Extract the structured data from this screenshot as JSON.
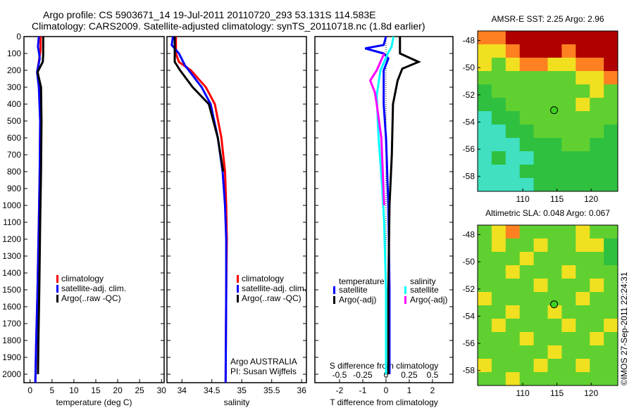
{
  "title_line1": "Argo profile: CS 5903671_14 19-Jul-2011 20110720_293 53.131S 114.583E",
  "title_line2": "Climatology: CARS2009. Satellite-adjusted climatology: synTS_20110718.nc (1.8d earlier)",
  "credit": "©IMOS 27-Sep-2011 22:24:31",
  "colors": {
    "clim": "#ff0000",
    "sat": "#0000ff",
    "argo": "#000000",
    "ssat": "#00ffff",
    "sargo": "#ff00ff"
  },
  "chart_data": [
    {
      "type": "line",
      "id": "temp",
      "xlabel": "temperature (deg C)",
      "xlim": [
        -1.4,
        30.6
      ],
      "ylim": [
        0,
        2050
      ],
      "yticks": [
        0,
        100,
        200,
        300,
        400,
        500,
        600,
        700,
        800,
        900,
        1000,
        1100,
        1200,
        1300,
        1400,
        1500,
        1600,
        1700,
        1800,
        1900,
        2000
      ],
      "xticks": [
        0,
        5,
        10,
        15,
        20,
        25,
        30
      ],
      "legend": [
        "climatology",
        "satellite-adj. clim.",
        "Argo(..raw -QC)"
      ],
      "series": [
        {
          "name": "climatology",
          "color": "clim",
          "points": [
            [
              2.4,
              0
            ],
            [
              2.4,
              80
            ],
            [
              2.1,
              130
            ],
            [
              1.7,
              200
            ],
            [
              2.1,
              300
            ],
            [
              2.3,
              500
            ],
            [
              2.2,
              800
            ],
            [
              2.0,
              1100
            ],
            [
              1.7,
              1500
            ],
            [
              1.4,
              1800
            ],
            [
              1.2,
              2050
            ]
          ]
        },
        {
          "name": "satellite-adj. clim.",
          "color": "sat",
          "points": [
            [
              2.0,
              0
            ],
            [
              1.8,
              60
            ],
            [
              2.0,
              90
            ],
            [
              2.2,
              130
            ],
            [
              1.6,
              210
            ],
            [
              2.0,
              300
            ],
            [
              2.3,
              500
            ],
            [
              2.2,
              800
            ],
            [
              2.0,
              1100
            ],
            [
              1.7,
              1500
            ],
            [
              1.4,
              1800
            ],
            [
              1.2,
              2050
            ]
          ]
        },
        {
          "name": "Argo(..raw -QC)",
          "color": "argo",
          "points": [
            [
              3.0,
              0
            ],
            [
              3.0,
              100
            ],
            [
              2.9,
              150
            ],
            [
              1.7,
              210
            ],
            [
              2.5,
              300
            ],
            [
              2.6,
              500
            ],
            [
              2.5,
              800
            ],
            [
              2.3,
              1100
            ],
            [
              2.1,
              1500
            ],
            [
              1.9,
              1800
            ],
            [
              1.8,
              2000
            ]
          ]
        }
      ]
    },
    {
      "type": "line",
      "id": "sal",
      "xlabel": "salinity",
      "xlim": [
        33.75,
        36.08
      ],
      "ylim": [
        0,
        2050
      ],
      "xticks": [
        34,
        34.5,
        35,
        35.5,
        36
      ],
      "legend": [
        "climatology",
        "satellite-adj. clim.",
        "Argo(..raw -QC)"
      ],
      "annotation": [
        "Argo AUSTRALIA",
        "PI: Susan Wijffels"
      ],
      "series": [
        {
          "name": "climatology",
          "color": "clim",
          "points": [
            [
              33.9,
              0
            ],
            [
              33.9,
              100
            ],
            [
              33.95,
              150
            ],
            [
              34.15,
              200
            ],
            [
              34.4,
              300
            ],
            [
              34.55,
              400
            ],
            [
              34.66,
              600
            ],
            [
              34.72,
              800
            ],
            [
              34.74,
              1000
            ],
            [
              34.75,
              1200
            ],
            [
              34.74,
              1500
            ],
            [
              34.73,
              2050
            ]
          ]
        },
        {
          "name": "satellite-adj. clim.",
          "color": "sat",
          "points": [
            [
              33.85,
              0
            ],
            [
              33.83,
              50
            ],
            [
              33.95,
              100
            ],
            [
              34.05,
              170
            ],
            [
              34.33,
              300
            ],
            [
              34.48,
              400
            ],
            [
              34.6,
              600
            ],
            [
              34.68,
              800
            ],
            [
              34.72,
              1000
            ],
            [
              34.74,
              1200
            ],
            [
              34.74,
              1500
            ],
            [
              34.73,
              2050
            ]
          ]
        },
        {
          "name": "Argo(..raw -QC)",
          "color": "argo",
          "points": [
            [
              33.88,
              0
            ],
            [
              33.88,
              150
            ],
            [
              33.97,
              200
            ],
            [
              34.18,
              300
            ],
            [
              34.45,
              400
            ],
            [
              34.6,
              600
            ],
            [
              34.69,
              800
            ]
          ]
        }
      ]
    },
    {
      "type": "line",
      "id": "diff",
      "xlabel": "T difference from climatology",
      "x2label": "S difference from climatology",
      "xlim": [
        -3.06,
        2.88
      ],
      "ylim": [
        0,
        2050
      ],
      "xticks": [
        -2,
        -1,
        0,
        1,
        2
      ],
      "x2ticks": [
        "-0.5",
        "-0.25",
        "0",
        "0.25",
        "0.5"
      ],
      "s_scale": 4,
      "legend_titles": [
        "temperature",
        "salinity"
      ],
      "legend": [
        "satellite",
        "Argo(-adj)",
        "satellite",
        "Argo(-adj)"
      ],
      "series": [
        {
          "name": "T satellite",
          "color": "sat",
          "points": [
            [
              0,
              0
            ],
            [
              -0.1,
              50
            ],
            [
              -0.9,
              70
            ],
            [
              -0.1,
              100
            ],
            [
              0.1,
              130
            ],
            [
              -0.1,
              200
            ],
            [
              -0.1,
              400
            ],
            [
              0,
              600
            ],
            [
              0.1,
              1000
            ],
            [
              0.15,
              1500
            ],
            [
              0.15,
              2000
            ]
          ]
        },
        {
          "name": "T Argo(-adj)",
          "color": "argo",
          "points": [
            [
              0.6,
              0
            ],
            [
              0.6,
              100
            ],
            [
              1.4,
              150
            ],
            [
              0.7,
              190
            ],
            [
              0.5,
              260
            ],
            [
              0.3,
              400
            ],
            [
              0.25,
              700
            ],
            [
              0.15,
              1000
            ],
            [
              0.1,
              1500
            ],
            [
              0.1,
              2000
            ]
          ]
        },
        {
          "name": "S satellite",
          "color": "ssat",
          "points": [
            [
              0.08,
              0
            ],
            [
              0.06,
              60
            ],
            [
              0.02,
              100
            ],
            [
              -0.06,
              200
            ],
            [
              -0.1,
              350
            ],
            [
              -0.08,
              600
            ],
            [
              -0.04,
              900
            ],
            [
              -0.02,
              1100
            ],
            [
              0,
              1500
            ],
            [
              0,
              2000
            ]
          ]
        },
        {
          "name": "S Argo(-adj)",
          "color": "sargo",
          "points": [
            [
              -0.02,
              100
            ],
            [
              -0.1,
              200
            ],
            [
              -0.17,
              260
            ],
            [
              -0.12,
              330
            ],
            [
              -0.1,
              400
            ],
            [
              -0.05,
              600
            ],
            [
              -0.02,
              1000
            ]
          ]
        }
      ]
    },
    {
      "type": "heatmap",
      "id": "sst",
      "title": "AMSR-E SST: 2.25 Argo: 2.96",
      "xticks": [
        110,
        115,
        120
      ],
      "yticks": [
        -48,
        -50,
        -52,
        -54,
        -56,
        -58
      ],
      "xlim": [
        103.4,
        123.9
      ],
      "ylim": [
        -59.1,
        -47.3
      ],
      "marker": [
        114.583,
        -53.131
      ],
      "vmin": 0,
      "vmax": 6,
      "grid": [
        [
          5,
          5,
          6,
          6,
          6,
          6,
          6,
          6,
          6,
          6
        ],
        [
          4,
          4,
          5,
          6,
          6,
          6,
          5,
          6,
          6,
          6
        ],
        [
          4,
          3,
          4,
          5,
          5,
          4,
          4,
          5,
          5,
          6
        ],
        [
          3,
          3,
          3,
          3,
          3,
          3,
          3,
          4,
          4,
          5
        ],
        [
          2,
          3,
          3,
          3,
          3,
          3,
          3,
          3,
          4,
          3
        ],
        [
          2,
          2,
          3,
          3,
          3,
          3,
          3,
          4,
          3,
          3
        ],
        [
          1,
          2,
          2,
          3,
          3,
          3,
          3,
          3,
          3,
          3
        ],
        [
          1,
          1,
          2,
          2,
          3,
          3,
          3,
          3,
          3,
          2
        ],
        [
          1,
          1,
          1,
          2,
          2,
          2,
          3,
          3,
          2,
          2
        ],
        [
          1,
          2,
          1,
          1,
          2,
          2,
          2,
          2,
          2,
          2
        ],
        [
          1,
          1,
          1,
          2,
          2,
          2,
          2,
          2,
          2,
          2
        ],
        [
          1,
          1,
          1,
          1,
          2,
          2,
          2,
          2,
          2,
          2
        ]
      ]
    },
    {
      "type": "heatmap",
      "id": "sla",
      "title": "Altimetric SLA: 0.048 Argo: 0.067",
      "xticks": [
        110,
        115,
        120
      ],
      "yticks": [
        -48,
        -50,
        -52,
        -54,
        -56,
        -58
      ],
      "xlim": [
        103.4,
        123.9
      ],
      "ylim": [
        -59.1,
        -47.3
      ],
      "marker": [
        114.583,
        -53.131
      ],
      "vmin": 0,
      "vmax": 6,
      "grid": [
        [
          3,
          4,
          5,
          3,
          3,
          3,
          3,
          4,
          3,
          3
        ],
        [
          3,
          4,
          3,
          3,
          4,
          3,
          3,
          4,
          4,
          2
        ],
        [
          3,
          3,
          3,
          4,
          3,
          3,
          3,
          3,
          3,
          2
        ],
        [
          3,
          3,
          4,
          3,
          3,
          3,
          4,
          3,
          3,
          3
        ],
        [
          3,
          3,
          3,
          3,
          4,
          3,
          3,
          3,
          4,
          3
        ],
        [
          4,
          3,
          3,
          3,
          3,
          3,
          3,
          4,
          3,
          3
        ],
        [
          3,
          3,
          4,
          3,
          3,
          4,
          3,
          3,
          3,
          3
        ],
        [
          3,
          4,
          3,
          3,
          3,
          3,
          4,
          3,
          3,
          4
        ],
        [
          3,
          3,
          3,
          4,
          3,
          3,
          3,
          3,
          4,
          3
        ],
        [
          3,
          3,
          3,
          3,
          3,
          4,
          3,
          3,
          3,
          3
        ],
        [
          4,
          3,
          3,
          3,
          4,
          3,
          3,
          4,
          3,
          3
        ],
        [
          3,
          3,
          4,
          3,
          3,
          3,
          3,
          3,
          3,
          3
        ]
      ]
    }
  ]
}
